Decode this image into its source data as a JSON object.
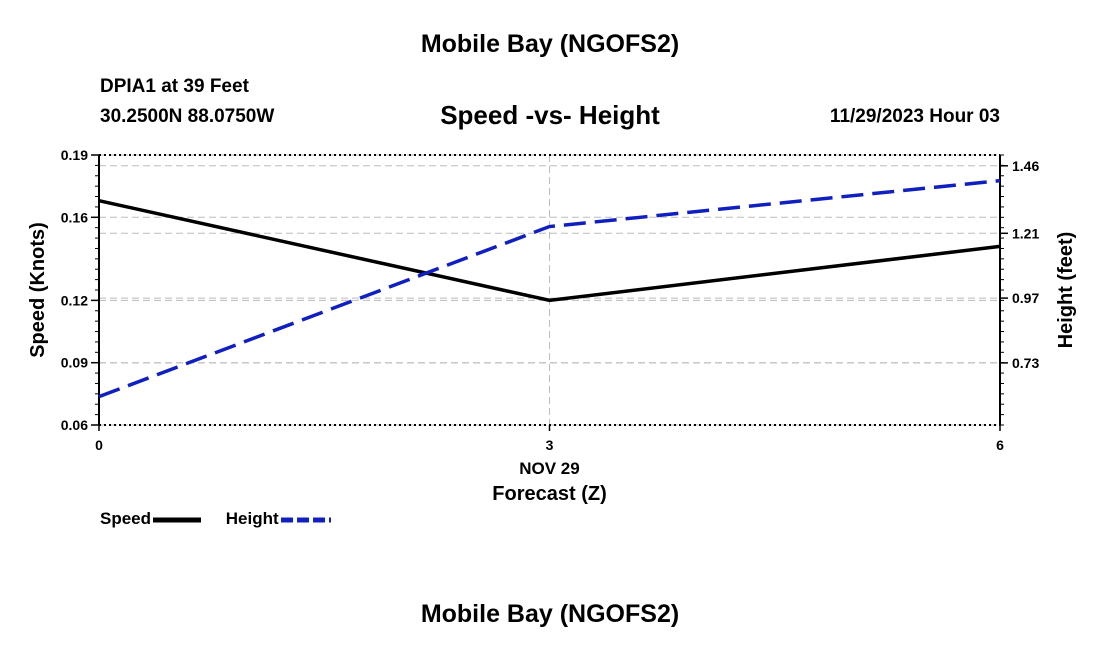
{
  "header": {
    "title": "Mobile Bay (NGOFS2)",
    "station": "DPIA1 at 39 Feet",
    "coords": "30.2500N  88.0750W",
    "subtitle": "Speed -vs- Height",
    "datetime": "11/29/2023 Hour 03"
  },
  "footer": {
    "title": "Mobile Bay (NGOFS2)"
  },
  "legend": {
    "speed_label": "Speed",
    "height_label": "Height"
  },
  "colors": {
    "speed": "#000000",
    "height": "#1020c0",
    "grid": "#bbbbbb"
  },
  "chart_data": {
    "type": "line",
    "title": "Speed -vs- Height",
    "xlabel": "Forecast (Z)",
    "xsublabel": "NOV 29",
    "ylabel": "Speed (Knots)",
    "y2label": "Height (feet)",
    "x": [
      0,
      3,
      6
    ],
    "xticks": [
      "0",
      "3",
      "6"
    ],
    "xlim": [
      0,
      6
    ],
    "ylim": [
      0.06,
      0.19
    ],
    "yticks": [
      "0.06",
      "0.09",
      "0.12",
      "0.16",
      "0.19"
    ],
    "yticks_values": [
      0.06,
      0.09,
      0.12,
      0.16,
      0.19
    ],
    "y2lim": [
      0.5,
      1.5
    ],
    "y2ticks": [
      "0.73",
      "0.97",
      "1.21",
      "1.46"
    ],
    "y2ticks_values": [
      0.73,
      0.97,
      1.21,
      1.46
    ],
    "series": [
      {
        "name": "Speed",
        "axis": "left",
        "style": "solid",
        "values": [
          0.168,
          0.12,
          0.146
        ]
      },
      {
        "name": "Height",
        "axis": "right",
        "style": "dashed",
        "values": [
          0.605,
          1.235,
          1.405
        ]
      }
    ],
    "legend": "bottom-left",
    "grid": true
  }
}
